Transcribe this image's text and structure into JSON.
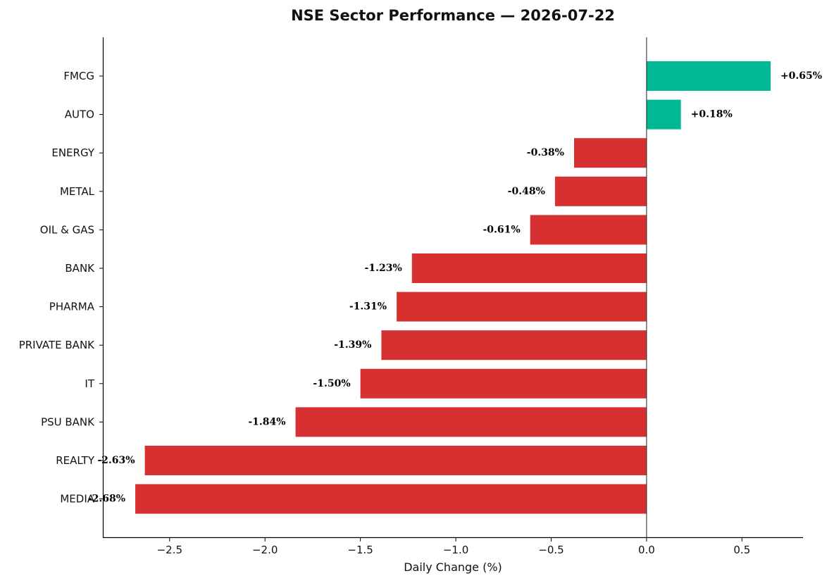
{
  "chart_data": {
    "type": "bar",
    "orientation": "horizontal",
    "title": "NSE Sector Performance — 2026-07-22",
    "xlabel": "Daily Change (%)",
    "ylabel": "",
    "categories": [
      "FMCG",
      "AUTO",
      "ENERGY",
      "METAL",
      "OIL & GAS",
      "BANK",
      "PHARMA",
      "PRIVATE BANK",
      "IT",
      "PSU BANK",
      "REALTY",
      "MEDIA"
    ],
    "values": [
      0.65,
      0.18,
      -0.38,
      -0.48,
      -0.61,
      -1.23,
      -1.31,
      -1.39,
      -1.5,
      -1.84,
      -2.63,
      -2.68
    ],
    "data_labels": [
      "+0.65%",
      "+0.18%",
      "-0.38%",
      "-0.48%",
      "-0.61%",
      "-1.23%",
      "-1.31%",
      "-1.39%",
      "-1.50%",
      "-1.84%",
      "-2.63%",
      "-2.68%"
    ],
    "xlim": [
      -2.85,
      0.82
    ],
    "xticks": [
      -2.5,
      -2.0,
      -1.5,
      -1.0,
      -0.5,
      0.0,
      0.5
    ],
    "xtick_labels": [
      "−2.5",
      "−2.0",
      "−1.5",
      "−1.0",
      "−0.5",
      "0.0",
      "0.5"
    ],
    "grid": false,
    "legend": "none",
    "colors": {
      "positive": "#00b894",
      "negative": "#d63031",
      "zero_line": "#333333"
    }
  }
}
